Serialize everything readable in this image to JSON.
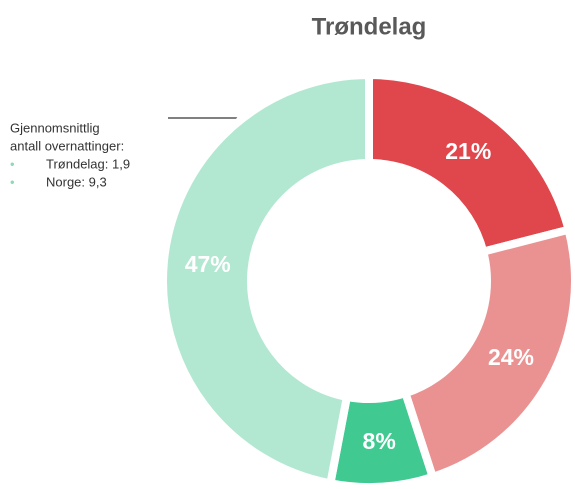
{
  "chart_data": {
    "type": "donut",
    "title": "Trøndelag",
    "values": [
      21,
      24,
      8,
      47
    ],
    "value_labels": [
      "21%",
      "24%",
      "8%",
      "47%"
    ],
    "colors": [
      "#e0474c",
      "#ea9292",
      "#40c990",
      "#b2e8d2"
    ],
    "note": {
      "lines": [
        "Gjennomsnittlig",
        "antall overnattinger:"
      ],
      "items": [
        "Trøndelag: 1,9",
        "Norge: 9,3"
      ]
    }
  }
}
